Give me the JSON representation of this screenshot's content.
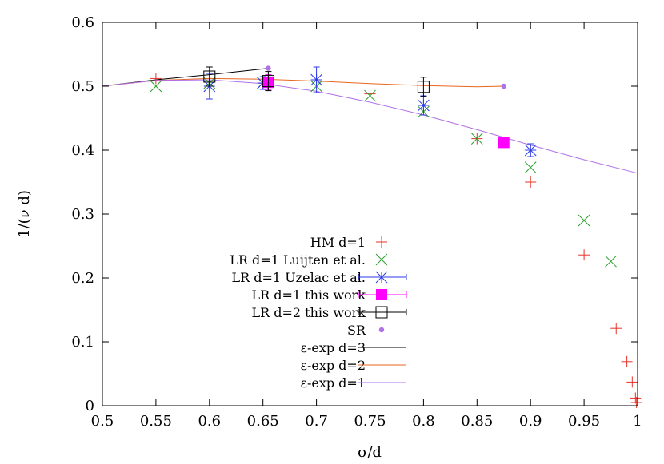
{
  "chart_data": {
    "type": "scatter",
    "xlabel": "σ/d",
    "ylabel": "1/(ν d)",
    "xlim": [
      0.5,
      1.0
    ],
    "ylim": [
      0.0,
      0.6
    ],
    "x_ticks": [
      "0.5",
      "0.55",
      "0.6",
      "0.65",
      "0.7",
      "0.75",
      "0.8",
      "0.85",
      "0.9",
      "0.95",
      "1"
    ],
    "y_ticks": [
      "0",
      "0.1",
      "0.2",
      "0.3",
      "0.4",
      "0.5",
      "0.6"
    ],
    "x_tick_values": [
      0.5,
      0.55,
      0.6,
      0.65,
      0.7,
      0.75,
      0.8,
      0.85,
      0.9,
      0.95,
      1.0
    ],
    "y_tick_values": [
      0,
      0.1,
      0.2,
      0.3,
      0.4,
      0.5,
      0.6
    ],
    "grid": false,
    "legend_position": "bottom-left",
    "series": [
      {
        "name": "HM d=1",
        "marker": "plus",
        "color": "#e8322a",
        "points": [
          {
            "x": 0.55,
            "y": 0.512
          },
          {
            "x": 0.655,
            "y": 0.51
          },
          {
            "x": 0.75,
            "y": 0.488
          },
          {
            "x": 0.85,
            "y": 0.418
          },
          {
            "x": 0.9,
            "y": 0.35
          },
          {
            "x": 0.95,
            "y": 0.236
          },
          {
            "x": 0.98,
            "y": 0.121
          },
          {
            "x": 0.99,
            "y": 0.069
          },
          {
            "x": 0.995,
            "y": 0.037
          },
          {
            "x": 0.998,
            "y": 0.012
          },
          {
            "x": 0.999,
            "y": 0.005
          }
        ]
      },
      {
        "name": "LR d=1 Luijten et al.",
        "marker": "cross",
        "color": "#2aa02a",
        "points": [
          {
            "x": 0.55,
            "y": 0.5
          },
          {
            "x": 0.6,
            "y": 0.505
          },
          {
            "x": 0.65,
            "y": 0.505
          },
          {
            "x": 0.7,
            "y": 0.5
          },
          {
            "x": 0.75,
            "y": 0.485
          },
          {
            "x": 0.8,
            "y": 0.46
          },
          {
            "x": 0.85,
            "y": 0.418
          },
          {
            "x": 0.9,
            "y": 0.373
          },
          {
            "x": 0.95,
            "y": 0.29
          },
          {
            "x": 0.975,
            "y": 0.226
          }
        ]
      },
      {
        "name": "LR d=1 Uzelac et al.",
        "marker": "star",
        "color": "#2a3ae8",
        "errorbars": true,
        "points": [
          {
            "x": 0.6,
            "y": 0.5,
            "err": 0.02
          },
          {
            "x": 0.65,
            "y": 0.505,
            "err": 0.01
          },
          {
            "x": 0.7,
            "y": 0.51,
            "err": 0.02
          },
          {
            "x": 0.8,
            "y": 0.47,
            "err": 0.015
          },
          {
            "x": 0.9,
            "y": 0.4,
            "err": 0.01
          }
        ]
      },
      {
        "name": "LR d=1 this work",
        "marker": "filled-square",
        "color": "#ff00ff",
        "errorbars": true,
        "points": [
          {
            "x": 0.655,
            "y": 0.506,
            "err": 0.012
          },
          {
            "x": 0.875,
            "y": 0.412,
            "err": 0.005
          }
        ]
      },
      {
        "name": "LR d=2 this work",
        "marker": "open-square",
        "color": "#000000",
        "errorbars": true,
        "points": [
          {
            "x": 0.6,
            "y": 0.515,
            "err": 0.015
          },
          {
            "x": 0.655,
            "y": 0.508,
            "err": 0.015
          },
          {
            "x": 0.8,
            "y": 0.499,
            "err": 0.015
          }
        ]
      },
      {
        "name": "SR",
        "marker": "dot",
        "color": "#b070e8",
        "points": [
          {
            "x": 0.655,
            "y": 0.528
          },
          {
            "x": 0.875,
            "y": 0.5
          }
        ]
      },
      {
        "name": "ε-exp d=3",
        "marker": "line",
        "color": "#000000",
        "points": [
          {
            "x": 0.5,
            "y": 0.5
          },
          {
            "x": 0.55,
            "y": 0.51
          },
          {
            "x": 0.6,
            "y": 0.518
          },
          {
            "x": 0.655,
            "y": 0.528
          }
        ]
      },
      {
        "name": "ε-exp d=2",
        "marker": "line",
        "color": "#e8661e",
        "points": [
          {
            "x": 0.5,
            "y": 0.5
          },
          {
            "x": 0.55,
            "y": 0.509
          },
          {
            "x": 0.6,
            "y": 0.512
          },
          {
            "x": 0.65,
            "y": 0.511
          },
          {
            "x": 0.7,
            "y": 0.508
          },
          {
            "x": 0.75,
            "y": 0.504
          },
          {
            "x": 0.8,
            "y": 0.501
          },
          {
            "x": 0.85,
            "y": 0.499
          },
          {
            "x": 0.875,
            "y": 0.5
          }
        ]
      },
      {
        "name": "ε-exp d=1",
        "marker": "line",
        "color": "#b070e8",
        "points": [
          {
            "x": 0.5,
            "y": 0.5
          },
          {
            "x": 0.55,
            "y": 0.509
          },
          {
            "x": 0.6,
            "y": 0.51
          },
          {
            "x": 0.65,
            "y": 0.504
          },
          {
            "x": 0.7,
            "y": 0.492
          },
          {
            "x": 0.75,
            "y": 0.475
          },
          {
            "x": 0.8,
            "y": 0.455
          },
          {
            "x": 0.85,
            "y": 0.432
          },
          {
            "x": 0.9,
            "y": 0.408
          },
          {
            "x": 0.95,
            "y": 0.385
          },
          {
            "x": 1.0,
            "y": 0.364
          }
        ]
      }
    ]
  }
}
